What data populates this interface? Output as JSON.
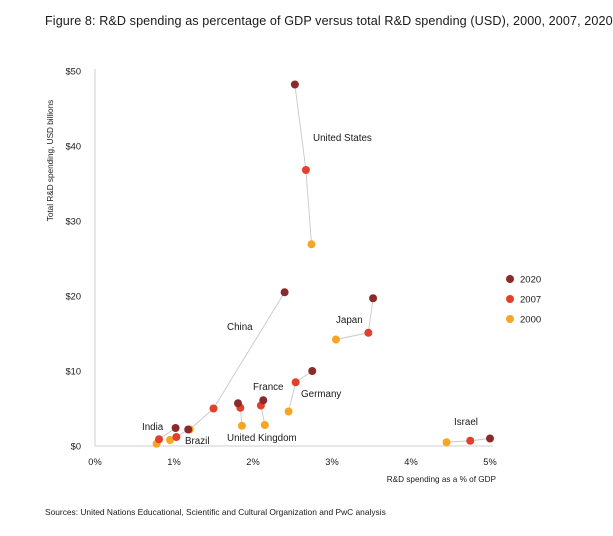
{
  "title": "Figure 8: R&D spending as percentage of GDP versus total R&D spending (USD), 2000, 2007, 2020",
  "source": "Sources: United Nations Educational, Scientific and Cultural Organization and PwC analysis",
  "colors": {
    "2020": "#8b2a2a",
    "2007": "#e2402a",
    "2000": "#f6a623",
    "connector": "#c8c8c8",
    "axis": "#cfcfcf"
  },
  "chart_data": {
    "type": "scatter",
    "xlabel": "R&D spending as a % of GDP",
    "ylabel": "Total R&D spending, USD billions",
    "xlim": [
      0,
      5
    ],
    "ylim": [
      0,
      50
    ],
    "x_ticks": [
      {
        "value": 0,
        "label": "0%"
      },
      {
        "value": 1,
        "label": "1%"
      },
      {
        "value": 2,
        "label": "2%"
      },
      {
        "value": 3,
        "label": "3%"
      },
      {
        "value": 4,
        "label": "4%"
      },
      {
        "value": 5,
        "label": "5%"
      }
    ],
    "y_ticks": [
      {
        "value": 0,
        "label": "$0"
      },
      {
        "value": 10,
        "label": "$10"
      },
      {
        "value": 20,
        "label": "$20"
      },
      {
        "value": 30,
        "label": "$30"
      },
      {
        "value": 40,
        "label": "$40"
      },
      {
        "value": 50,
        "label": "$50"
      }
    ],
    "legend": {
      "position": "right",
      "entries": [
        {
          "name": "2020",
          "color": "#8b2a2a"
        },
        {
          "name": "2007",
          "color": "#e2402a"
        },
        {
          "name": "2000",
          "color": "#f6a623"
        }
      ]
    },
    "grid": false,
    "countries": [
      {
        "name": "United States",
        "points": [
          {
            "year": "2020",
            "x": 2.53,
            "y": 48.2
          },
          {
            "year": "2007",
            "x": 2.67,
            "y": 36.8
          },
          {
            "year": "2000",
            "x": 2.74,
            "y": 26.9
          }
        ]
      },
      {
        "name": "China",
        "points": [
          {
            "year": "2020",
            "x": 2.4,
            "y": 20.5
          },
          {
            "year": "2007",
            "x": 1.5,
            "y": 5.0
          },
          {
            "year": "2000",
            "x": 1.2,
            "y": 2.2
          }
        ]
      },
      {
        "name": "Japan",
        "points": [
          {
            "year": "2020",
            "x": 3.52,
            "y": 19.7
          },
          {
            "year": "2007",
            "x": 3.46,
            "y": 15.1
          },
          {
            "year": "2000",
            "x": 3.05,
            "y": 14.2
          }
        ]
      },
      {
        "name": "Germany",
        "points": [
          {
            "year": "2020",
            "x": 2.75,
            "y": 10.0
          },
          {
            "year": "2007",
            "x": 2.54,
            "y": 8.5
          },
          {
            "year": "2000",
            "x": 2.45,
            "y": 4.6
          }
        ]
      },
      {
        "name": "France",
        "points": [
          {
            "year": "2020",
            "x": 2.13,
            "y": 6.1
          },
          {
            "year": "2007",
            "x": 2.1,
            "y": 5.4
          },
          {
            "year": "2000",
            "x": 2.15,
            "y": 2.8
          }
        ]
      },
      {
        "name": "United Kingdom",
        "points": [
          {
            "year": "2020",
            "x": 1.81,
            "y": 5.7
          },
          {
            "year": "2007",
            "x": 1.84,
            "y": 5.1
          },
          {
            "year": "2000",
            "x": 1.86,
            "y": 2.7
          }
        ]
      },
      {
        "name": "India",
        "points": [
          {
            "year": "2020",
            "x": 1.02,
            "y": 2.4
          },
          {
            "year": "2007",
            "x": 0.81,
            "y": 0.9
          },
          {
            "year": "2000",
            "x": 0.78,
            "y": 0.3
          }
        ]
      },
      {
        "name": "Brazil",
        "points": [
          {
            "year": "2020",
            "x": 1.18,
            "y": 2.2
          },
          {
            "year": "2007",
            "x": 1.03,
            "y": 1.2
          },
          {
            "year": "2000",
            "x": 0.95,
            "y": 0.8
          }
        ]
      },
      {
        "name": "Israel",
        "points": [
          {
            "year": "2020",
            "x": 5.0,
            "y": 1.0
          },
          {
            "year": "2007",
            "x": 4.75,
            "y": 0.7
          },
          {
            "year": "2000",
            "x": 4.45,
            "y": 0.5
          }
        ]
      }
    ],
    "annotations": [
      {
        "text": "United States",
        "near": "United States"
      },
      {
        "text": "China",
        "near": "China"
      },
      {
        "text": "Japan",
        "near": "Japan"
      },
      {
        "text": "Germany",
        "near": "Germany"
      },
      {
        "text": "France",
        "near": "France"
      },
      {
        "text": "United Kingdom",
        "near": "United Kingdom"
      },
      {
        "text": "India",
        "near": "India"
      },
      {
        "text": "Brazil",
        "near": "Brazil"
      },
      {
        "text": "Israel",
        "near": "Israel"
      }
    ]
  }
}
